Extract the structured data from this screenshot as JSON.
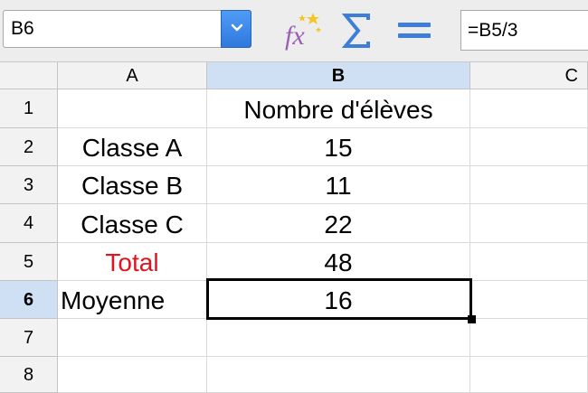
{
  "toolbar": {
    "name_box": "B6",
    "formula": "=B5/3",
    "icons": [
      "function-wizard-icon",
      "sum-icon",
      "formula-equals-icon"
    ]
  },
  "columns": [
    "A",
    "B",
    "C"
  ],
  "selected_column": "B",
  "rows": [
    {
      "num": "1",
      "a": "",
      "b": "Nombre d'élèves"
    },
    {
      "num": "2",
      "a": "Classe A",
      "b": "15"
    },
    {
      "num": "3",
      "a": "Classe B",
      "b": "11"
    },
    {
      "num": "4",
      "a": "Classe C",
      "b": "22"
    },
    {
      "num": "5",
      "a": "Total",
      "b": "48"
    },
    {
      "num": "6",
      "a": "Moyenne",
      "b": "16"
    },
    {
      "num": "7",
      "a": "",
      "b": ""
    },
    {
      "num": "8",
      "a": "",
      "b": ""
    }
  ],
  "selected_row": "6",
  "colors": {
    "total_label": "#e0141e",
    "selection_header": "#cfe0f4"
  }
}
